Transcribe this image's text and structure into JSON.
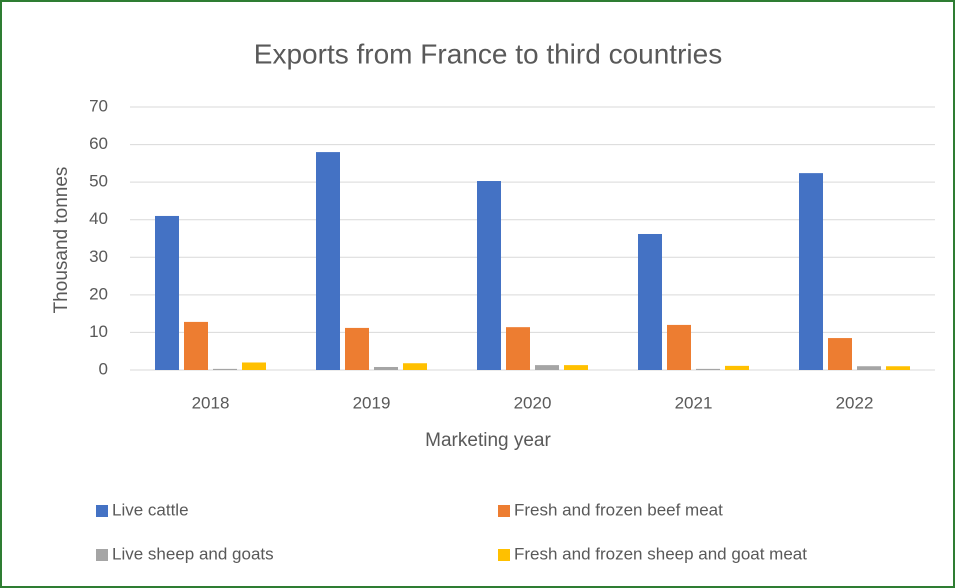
{
  "chart_data": {
    "type": "bar",
    "title": "Exports from France to third countries",
    "x_label": "Marketing year",
    "y_label": "Thousand tonnes",
    "categories": [
      "2018",
      "2019",
      "2020",
      "2021",
      "2022"
    ],
    "series": [
      {
        "name": "Live cattle",
        "color": "#4472c4",
        "values": [
          41,
          58,
          50.3,
          36.2,
          52.4
        ]
      },
      {
        "name": "Fresh and frozen beef meat",
        "color": "#ed7d31",
        "values": [
          12.8,
          11.2,
          11.4,
          12,
          8.5
        ]
      },
      {
        "name": "Live sheep and goats",
        "color": "#a5a5a5",
        "values": [
          0.3,
          0.8,
          1.3,
          0.3,
          1
        ]
      },
      {
        "name": "Fresh and frozen sheep and goat meat",
        "color": "#ffc000",
        "values": [
          2,
          1.8,
          1.3,
          1.1,
          1
        ]
      }
    ],
    "ylim": [
      0,
      70
    ],
    "yticks": [
      0,
      10,
      20,
      30,
      40,
      50,
      60,
      70
    ],
    "grid": true,
    "legend": "bottom"
  }
}
